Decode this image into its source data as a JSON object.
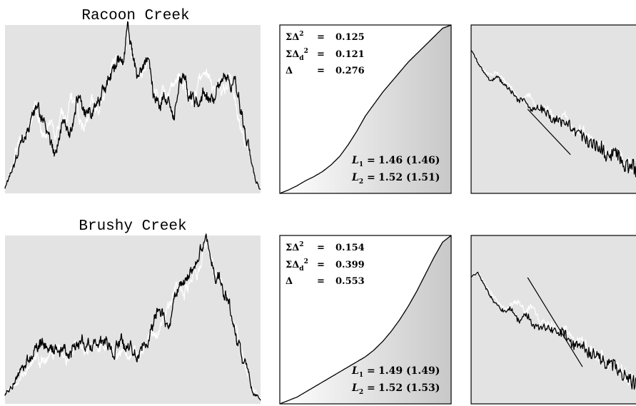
{
  "colors": {
    "panel_background": "#e3e3e3",
    "observed_line": "#000000",
    "model_line": "#ffffff",
    "frame": "#000000"
  },
  "chart_data": [
    {
      "type": "line",
      "title": "Racoon Creek",
      "series": [
        {
          "color": "#ffffff",
          "values": [
            0.03,
            0.13,
            0.25,
            0.3,
            0.35,
            0.42,
            0.55,
            0.38,
            0.33,
            0.45,
            0.32,
            0.5,
            0.44,
            0.6,
            0.52,
            0.4,
            0.45,
            0.56,
            0.5,
            0.58,
            0.64,
            0.75,
            0.82,
            0.78,
            0.96,
            0.8,
            0.7,
            0.72,
            0.8,
            0.66,
            0.55,
            0.62,
            0.58,
            0.65,
            0.7,
            0.62,
            0.6,
            0.55,
            0.68,
            0.75,
            0.7,
            0.6,
            0.66,
            0.6,
            0.7,
            0.55,
            0.4,
            0.34,
            0.22,
            0.08,
            0.02
          ]
        },
        {
          "color": "#000000",
          "values": [
            0.03,
            0.12,
            0.2,
            0.26,
            0.32,
            0.4,
            0.5,
            0.46,
            0.4,
            0.3,
            0.25,
            0.4,
            0.36,
            0.34,
            0.52,
            0.5,
            0.45,
            0.48,
            0.55,
            0.6,
            0.66,
            0.72,
            0.8,
            0.75,
            0.98,
            0.82,
            0.7,
            0.72,
            0.78,
            0.56,
            0.5,
            0.58,
            0.52,
            0.45,
            0.65,
            0.7,
            0.56,
            0.58,
            0.5,
            0.62,
            0.55,
            0.54,
            0.65,
            0.7,
            0.62,
            0.66,
            0.5,
            0.35,
            0.2,
            0.08,
            0.02
          ]
        }
      ]
    },
    {
      "type": "area",
      "x": [
        0.0,
        0.05,
        0.1,
        0.15,
        0.2,
        0.25,
        0.3,
        0.35,
        0.4,
        0.45,
        0.5,
        0.55,
        0.6,
        0.65,
        0.7,
        0.75,
        0.8,
        0.85,
        0.9,
        0.95,
        1.0
      ],
      "y": [
        0.0,
        0.02,
        0.045,
        0.075,
        0.1,
        0.13,
        0.17,
        0.22,
        0.29,
        0.37,
        0.46,
        0.53,
        0.6,
        0.66,
        0.72,
        0.78,
        0.83,
        0.88,
        0.93,
        0.98,
        1.0
      ],
      "annotations": {
        "sum_delta_sq": {
          "label": "ΣΔ",
          "sup": "2",
          "value": "0.125"
        },
        "sum_delta_d_sq": {
          "label": "ΣΔ",
          "sub": "d",
          "sup": "2",
          "value": "0.121"
        },
        "delta": {
          "label": "Δ",
          "value": "0.276"
        },
        "L1": {
          "label": "L",
          "sub": "1",
          "value": "1.46 (1.46)"
        },
        "L2": {
          "label": "L",
          "sub": "2",
          "value": "1.52 (1.51)"
        }
      }
    },
    {
      "type": "line",
      "series": [
        {
          "color": "#ffffff",
          "values": [
            0.85,
            0.78,
            0.73,
            0.7,
            0.72,
            0.68,
            0.62,
            0.58,
            0.56,
            0.57,
            0.52,
            0.5,
            0.48,
            0.44,
            0.47,
            0.4,
            0.38,
            0.36,
            0.34,
            0.3,
            0.28,
            0.25,
            0.23,
            0.2,
            0.17,
            0.15,
            0.12
          ]
        },
        {
          "color": "#000000",
          "values": [
            0.85,
            0.78,
            0.72,
            0.66,
            0.7,
            0.64,
            0.6,
            0.57,
            0.55,
            0.5,
            0.53,
            0.48,
            0.46,
            0.44,
            0.4,
            0.42,
            0.36,
            0.33,
            0.32,
            0.28,
            0.26,
            0.22,
            0.24,
            0.18,
            0.16,
            0.14,
            0.12
          ]
        }
      ],
      "reference_line": {
        "x": [
          0.33,
          0.58
        ],
        "y": [
          0.5,
          0.23
        ]
      }
    },
    {
      "type": "line",
      "title": "Brushy Creek",
      "series": [
        {
          "color": "#ffffff",
          "values": [
            0.05,
            0.12,
            0.16,
            0.22,
            0.28,
            0.24,
            0.3,
            0.32,
            0.3,
            0.34,
            0.3,
            0.33,
            0.31,
            0.35,
            0.32,
            0.3,
            0.34,
            0.3,
            0.36,
            0.4,
            0.48,
            0.58,
            0.7,
            0.66,
            0.74,
            0.8,
            0.97,
            0.78,
            0.72,
            0.6,
            0.4,
            0.25,
            0.1,
            0.02
          ]
        },
        {
          "color": "#000000",
          "values": [
            0.05,
            0.12,
            0.2,
            0.26,
            0.32,
            0.36,
            0.32,
            0.34,
            0.3,
            0.32,
            0.36,
            0.33,
            0.37,
            0.34,
            0.32,
            0.36,
            0.34,
            0.3,
            0.38,
            0.45,
            0.56,
            0.5,
            0.62,
            0.72,
            0.8,
            0.85,
            1.0,
            0.8,
            0.7,
            0.58,
            0.38,
            0.22,
            0.08,
            0.02
          ]
        }
      ]
    },
    {
      "type": "area",
      "x": [
        0.0,
        0.05,
        0.1,
        0.15,
        0.2,
        0.25,
        0.3,
        0.35,
        0.4,
        0.45,
        0.5,
        0.55,
        0.6,
        0.65,
        0.7,
        0.75,
        0.8,
        0.85,
        0.9,
        0.95,
        1.0
      ],
      "y": [
        0.0,
        0.02,
        0.04,
        0.07,
        0.1,
        0.13,
        0.16,
        0.19,
        0.22,
        0.25,
        0.28,
        0.32,
        0.37,
        0.43,
        0.5,
        0.58,
        0.67,
        0.77,
        0.87,
        0.96,
        1.0
      ],
      "annotations": {
        "sum_delta_sq": {
          "label": "ΣΔ",
          "sup": "2",
          "value": "0.154"
        },
        "sum_delta_d_sq": {
          "label": "ΣΔ",
          "sub": "d",
          "sup": "2",
          "value": "0.399"
        },
        "delta": {
          "label": "Δ",
          "value": "0.553"
        },
        "L1": {
          "label": "L",
          "sub": "1",
          "value": "1.49 (1.49)"
        },
        "L2": {
          "label": "L",
          "sub": "2",
          "value": "1.52 (1.53)"
        }
      }
    },
    {
      "type": "line",
      "series": [
        {
          "color": "#ffffff",
          "values": [
            0.75,
            0.78,
            0.72,
            0.65,
            0.6,
            0.56,
            0.58,
            0.62,
            0.54,
            0.58,
            0.5,
            0.46,
            0.47,
            0.44,
            0.42,
            0.38,
            0.36,
            0.34,
            0.3,
            0.27,
            0.25,
            0.22,
            0.19,
            0.16,
            0.12,
            0.08
          ]
        },
        {
          "color": "#000000",
          "values": [
            0.75,
            0.78,
            0.7,
            0.62,
            0.58,
            0.54,
            0.56,
            0.5,
            0.52,
            0.48,
            0.46,
            0.44,
            0.45,
            0.42,
            0.4,
            0.36,
            0.34,
            0.32,
            0.29,
            0.26,
            0.24,
            0.21,
            0.18,
            0.15,
            0.11,
            0.07
          ]
        }
      ],
      "reference_line": {
        "x": [
          0.33,
          0.65
        ],
        "y": [
          0.75,
          0.22
        ]
      }
    }
  ]
}
